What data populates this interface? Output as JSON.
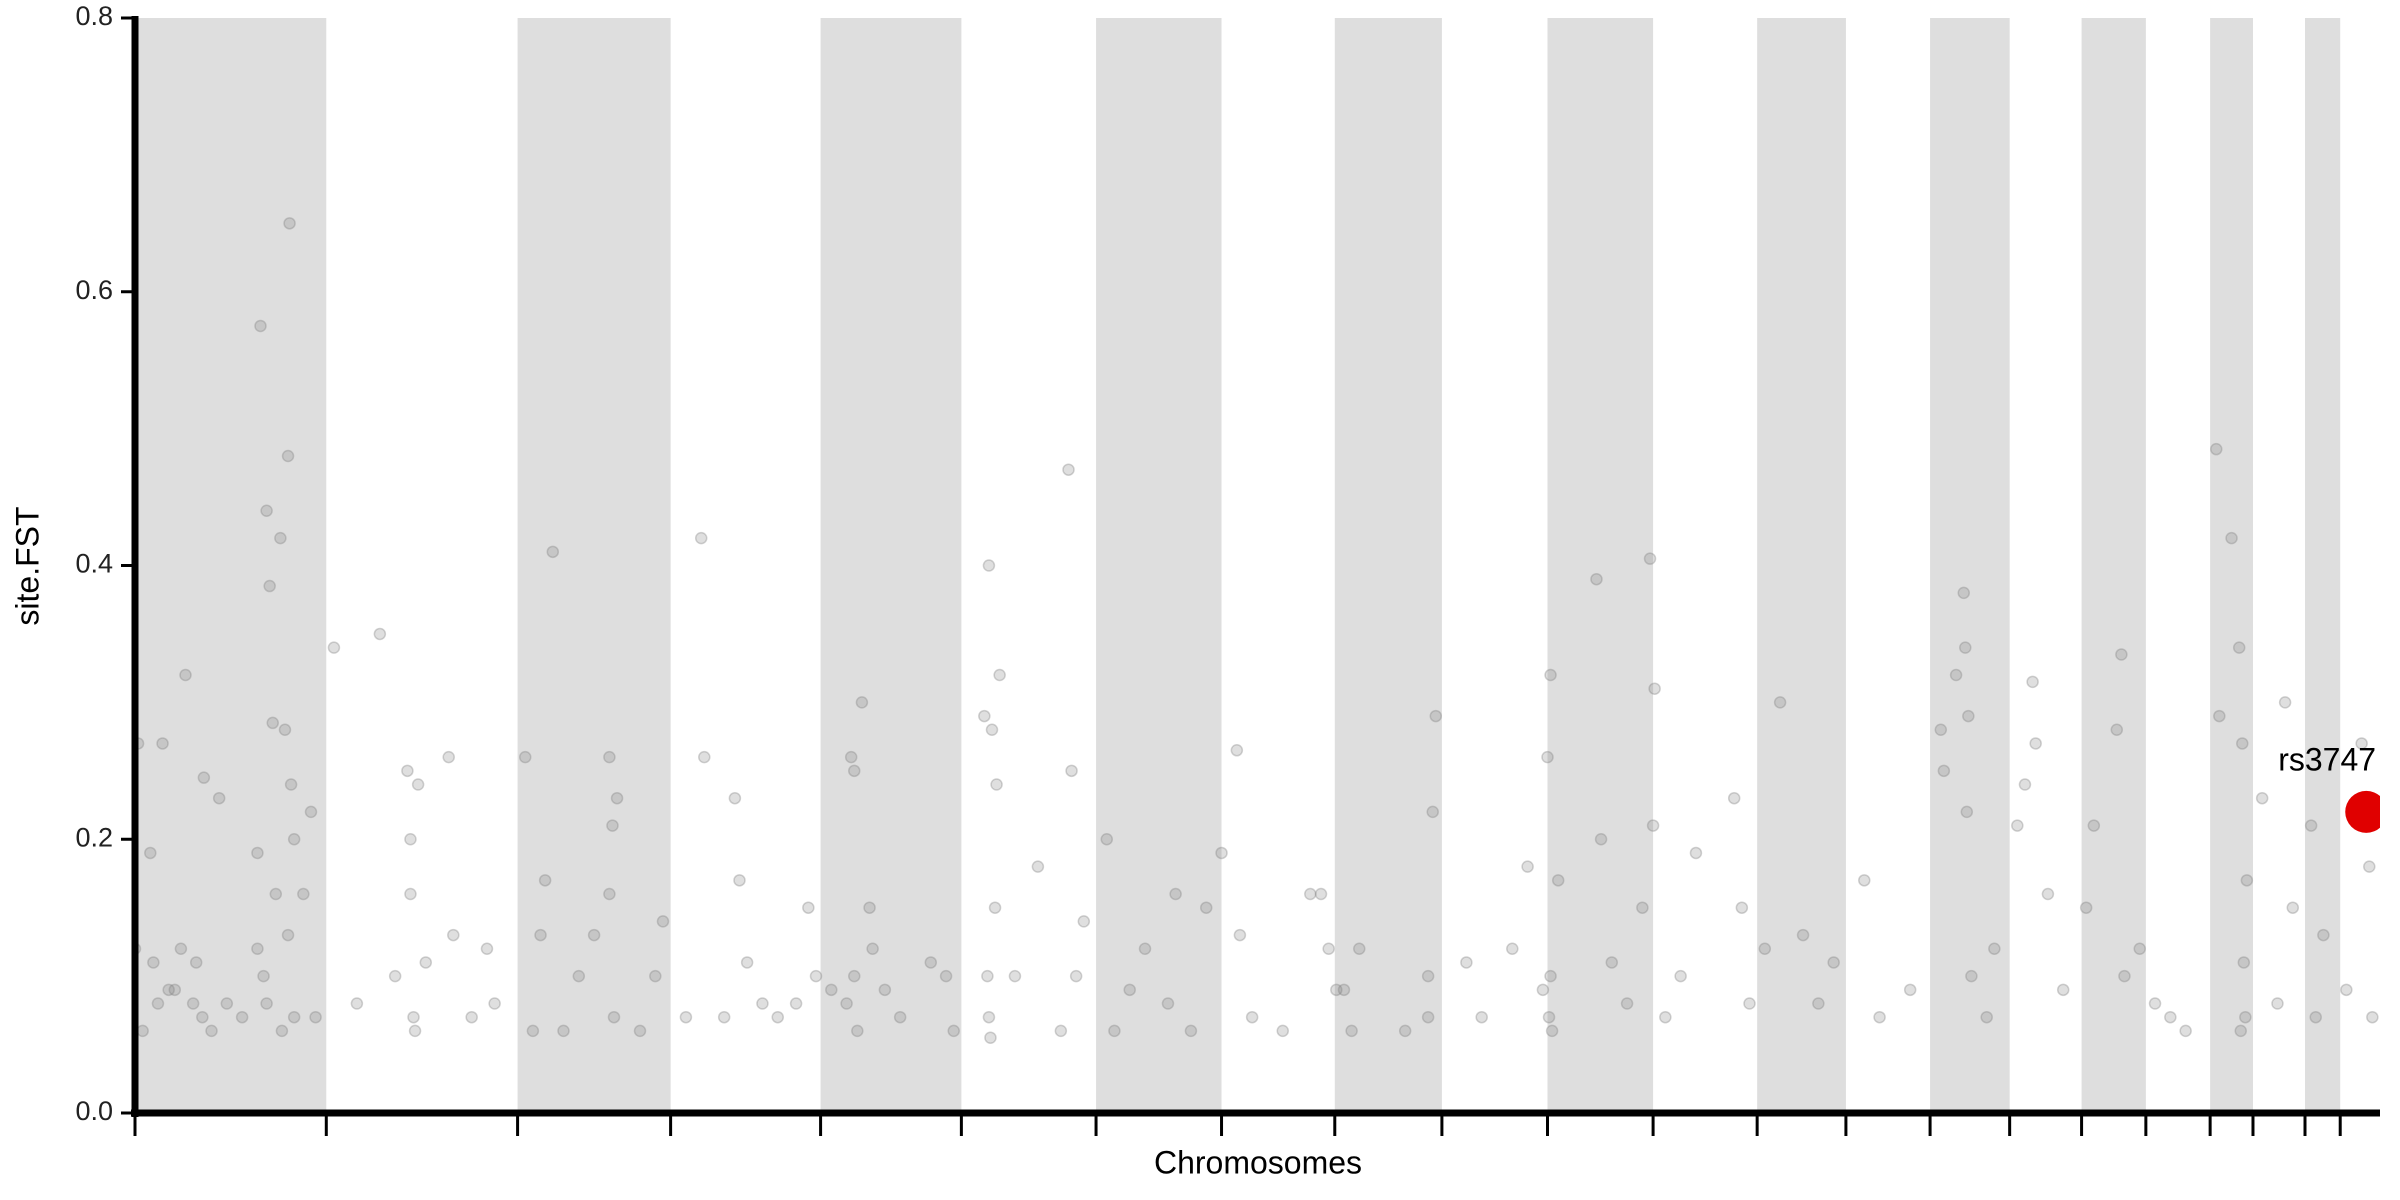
{
  "chart_data": {
    "type": "scatter",
    "xlabel": "Chromosomes",
    "ylabel": "site.FST",
    "xlim": [
      0,
      1467
    ],
    "xticks": [
      0,
      125,
      250,
      350,
      448,
      540,
      628,
      710,
      784,
      854,
      923,
      992,
      1060,
      1118,
      1173,
      1225,
      1272,
      1314,
      1356,
      1384,
      1418,
      1441
    ],
    "ylim": [
      0,
      0.8
    ],
    "yticks": [
      {
        "value": 0,
        "label": "0.0"
      },
      0.2,
      0.4,
      0.6,
      0.8
    ],
    "band_color": "#dedede",
    "color": "#808080",
    "opacity": 0.25,
    "x": [
      2,
      0,
      5,
      10,
      12,
      18,
      22,
      30,
      33,
      38,
      45,
      50,
      55,
      60,
      70,
      80,
      82,
      84,
      86,
      88,
      90,
      95,
      98,
      100,
      101,
      102,
      104,
      100,
      96,
      92,
      86,
      44,
      40,
      26,
      15,
      110,
      115,
      118,
      104,
      80,
      130,
      145,
      160,
      170,
      178,
      180,
      182,
      183,
      190,
      205,
      208,
      220,
      230,
      235,
      180,
      185,
      255,
      260,
      265,
      268,
      273,
      280,
      290,
      300,
      310,
      312,
      313,
      310,
      315,
      330,
      345,
      340,
      360,
      370,
      372,
      385,
      392,
      395,
      400,
      410,
      420,
      432,
      440,
      445,
      455,
      465,
      468,
      470,
      475,
      480,
      470,
      472,
      482,
      490,
      500,
      520,
      530,
      535,
      555,
      558,
      560,
      562,
      557,
      558,
      559,
      563,
      565,
      575,
      590,
      610,
      612,
      620,
      615,
      605,
      635,
      640,
      650,
      660,
      675,
      680,
      690,
      700,
      710,
      720,
      722,
      730,
      750,
      768,
      775,
      780,
      785,
      790,
      795,
      800,
      830,
      845,
      850,
      848,
      845,
      870,
      880,
      900,
      910,
      920,
      925,
      923,
      924,
      925,
      926,
      930,
      955,
      958,
      965,
      975,
      985,
      990,
      993,
      992,
      1000,
      1010,
      1020,
      1045,
      1050,
      1055,
      1065,
      1075,
      1090,
      1100,
      1110,
      1130,
      1140,
      1160,
      1180,
      1182,
      1190,
      1195,
      1196,
      1198,
      1197,
      1200,
      1210,
      1215,
      1230,
      1235,
      1240,
      1242,
      1250,
      1260,
      1275,
      1280,
      1295,
      1298,
      1300,
      1310,
      1320,
      1330,
      1340,
      1360,
      1362,
      1370,
      1375,
      1377,
      1380,
      1378,
      1379,
      1376,
      1390,
      1400,
      1405,
      1410,
      1422,
      1430,
      1425,
      1445,
      1455,
      1460,
      1462
    ],
    "values": [
      0.27,
      0.12,
      0.06,
      0.19,
      0.11,
      0.27,
      0.09,
      0.12,
      0.32,
      0.08,
      0.245,
      0.06,
      0.23,
      0.08,
      0.07,
      0.19,
      0.575,
      0.1,
      0.44,
      0.385,
      0.285,
      0.42,
      0.28,
      0.48,
      0.65,
      0.24,
      0.07,
      0.13,
      0.06,
      0.16,
      0.08,
      0.07,
      0.11,
      0.09,
      0.08,
      0.16,
      0.22,
      0.07,
      0.2,
      0.12,
      0.34,
      0.08,
      0.35,
      0.1,
      0.25,
      0.2,
      0.07,
      0.06,
      0.11,
      0.26,
      0.13,
      0.07,
      0.12,
      0.08,
      0.16,
      0.24,
      0.26,
      0.06,
      0.13,
      0.17,
      0.41,
      0.06,
      0.1,
      0.13,
      0.26,
      0.21,
      0.07,
      0.16,
      0.23,
      0.06,
      0.14,
      0.1,
      0.07,
      0.42,
      0.26,
      0.07,
      0.23,
      0.17,
      0.11,
      0.08,
      0.07,
      0.08,
      0.15,
      0.1,
      0.09,
      0.08,
      0.26,
      0.25,
      0.3,
      0.15,
      0.1,
      0.06,
      0.12,
      0.09,
      0.07,
      0.11,
      0.1,
      0.06,
      0.29,
      0.4,
      0.28,
      0.15,
      0.1,
      0.07,
      0.055,
      0.24,
      0.32,
      0.1,
      0.18,
      0.47,
      0.25,
      0.14,
      0.1,
      0.06,
      0.2,
      0.06,
      0.09,
      0.12,
      0.08,
      0.16,
      0.06,
      0.15,
      0.19,
      0.265,
      0.13,
      0.07,
      0.06,
      0.16,
      0.16,
      0.12,
      0.09,
      0.09,
      0.06,
      0.12,
      0.06,
      0.07,
      0.29,
      0.22,
      0.1,
      0.11,
      0.07,
      0.12,
      0.18,
      0.09,
      0.32,
      0.26,
      0.07,
      0.1,
      0.06,
      0.17,
      0.39,
      0.2,
      0.11,
      0.08,
      0.15,
      0.405,
      0.31,
      0.21,
      0.07,
      0.1,
      0.19,
      0.23,
      0.15,
      0.08,
      0.12,
      0.3,
      0.13,
      0.08,
      0.11,
      0.17,
      0.07,
      0.09,
      0.28,
      0.25,
      0.32,
      0.38,
      0.34,
      0.29,
      0.22,
      0.1,
      0.07,
      0.12,
      0.21,
      0.24,
      0.315,
      0.27,
      0.16,
      0.09,
      0.15,
      0.21,
      0.28,
      0.335,
      0.1,
      0.12,
      0.08,
      0.07,
      0.06,
      0.485,
      0.29,
      0.42,
      0.34,
      0.27,
      0.17,
      0.11,
      0.07,
      0.06,
      0.23,
      0.08,
      0.3,
      0.15,
      0.21,
      0.13,
      0.07,
      0.09,
      0.27,
      0.18,
      0.07
    ],
    "highlight": {
      "label": "rs3747",
      "x": 1458,
      "y": 0.22,
      "color": "#e00000"
    }
  }
}
